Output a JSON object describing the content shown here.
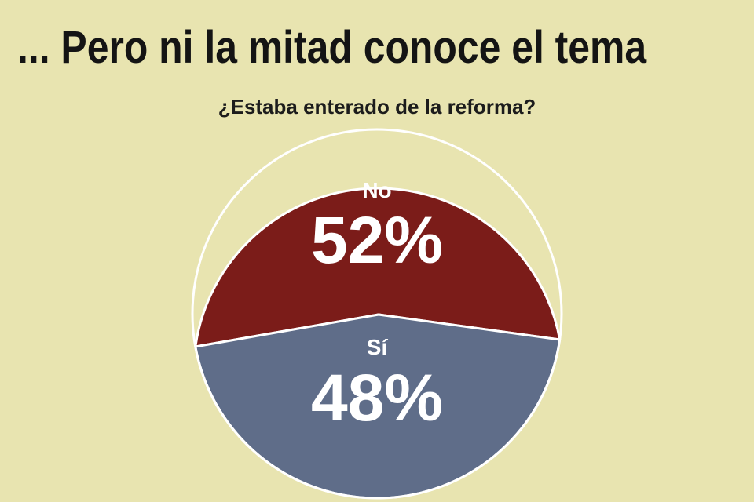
{
  "chart_data": {
    "type": "pie",
    "title": "... Pero ni la mitad conoce el tema",
    "subtitle": "¿Estaba enterado de la reforma?",
    "slices": [
      {
        "label": "No",
        "value": 52,
        "value_text": "52%",
        "color": "#7b1c19"
      },
      {
        "label": "Sí",
        "value": 48,
        "value_text": "48%",
        "color": "#5f6d89"
      }
    ],
    "label_color": "#ffffff",
    "border_color": "#ffffff",
    "background": "#e8e4b0"
  }
}
